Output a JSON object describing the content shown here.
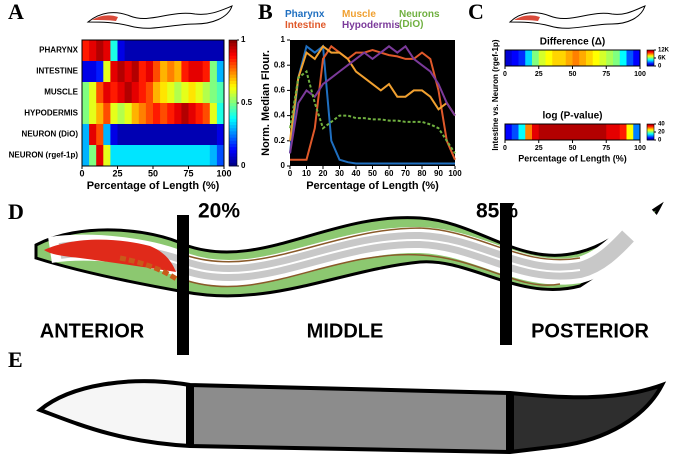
{
  "panels": [
    "A",
    "B",
    "C",
    "D",
    "E"
  ],
  "chart_data": [
    {
      "type": "heatmap",
      "rows": [
        "PHARYNX",
        "INTESTINE",
        "MUSCLE",
        "HYPODERMIS",
        "NEURON (DiO)",
        "NEURON (rgef-1p)"
      ],
      "xlabel": "Percentage of Length (%)",
      "xlim": [
        0,
        100
      ],
      "xticks": [
        0,
        25,
        50,
        75,
        100
      ],
      "zlim": [
        0,
        1
      ],
      "zticks": [
        0,
        0.5,
        1
      ],
      "values": [
        [
          0.85,
          0.9,
          0.95,
          0.9,
          0.4,
          0.1,
          0.05,
          0.05,
          0.05,
          0.05,
          0.05,
          0.05,
          0.05,
          0.05,
          0.05,
          0.05,
          0.05,
          0.05,
          0.05,
          0.05
        ],
        [
          0.1,
          0.1,
          0.15,
          0.6,
          0.9,
          0.95,
          0.9,
          0.95,
          0.85,
          0.9,
          0.8,
          0.7,
          0.75,
          0.7,
          0.85,
          0.9,
          0.9,
          0.85,
          0.5,
          0.3
        ],
        [
          0.5,
          0.6,
          0.8,
          0.9,
          0.85,
          0.9,
          0.95,
          0.9,
          0.85,
          0.8,
          0.7,
          0.65,
          0.6,
          0.55,
          0.6,
          0.65,
          0.6,
          0.55,
          0.5,
          0.45
        ],
        [
          0.5,
          0.6,
          0.7,
          0.8,
          0.6,
          0.55,
          0.6,
          0.7,
          0.75,
          0.8,
          0.85,
          0.8,
          0.85,
          0.9,
          0.95,
          0.9,
          0.85,
          0.8,
          0.6,
          0.4
        ],
        [
          0.3,
          0.9,
          0.8,
          0.3,
          0.1,
          0.05,
          0.05,
          0.05,
          0.05,
          0.05,
          0.05,
          0.05,
          0.05,
          0.05,
          0.05,
          0.05,
          0.05,
          0.05,
          0.05,
          0.1
        ],
        [
          0.3,
          0.5,
          0.9,
          0.6,
          0.35,
          0.35,
          0.35,
          0.35,
          0.35,
          0.35,
          0.35,
          0.35,
          0.35,
          0.35,
          0.35,
          0.35,
          0.35,
          0.35,
          0.3,
          0.2
        ]
      ]
    },
    {
      "type": "line",
      "ylabel": "Norm. Median Flour.",
      "xlabel": "Percentage of Length (%)",
      "xlim": [
        0,
        100
      ],
      "xticks": [
        0,
        10,
        20,
        30,
        40,
        50,
        60,
        70,
        80,
        90,
        100
      ],
      "ylim": [
        0,
        1
      ],
      "yticks": [
        0,
        0.2,
        0.4,
        0.6,
        0.8,
        1
      ],
      "x": [
        0,
        5,
        10,
        15,
        20,
        25,
        30,
        35,
        40,
        45,
        50,
        55,
        60,
        65,
        70,
        75,
        80,
        85,
        90,
        95,
        100
      ],
      "series": [
        {
          "name": "Pharynx",
          "color": "#1f6fc0",
          "values": [
            0.1,
            0.7,
            0.95,
            0.9,
            0.95,
            0.2,
            0.05,
            0.03,
            0.02,
            0.02,
            0.02,
            0.02,
            0.02,
            0.02,
            0.02,
            0.02,
            0.02,
            0.02,
            0.02,
            0.02,
            0.02
          ]
        },
        {
          "name": "Intestine",
          "color": "#e0592a",
          "values": [
            0.05,
            0.05,
            0.05,
            0.3,
            0.85,
            0.95,
            0.9,
            0.85,
            0.9,
            0.9,
            0.92,
            0.9,
            0.88,
            0.87,
            0.85,
            0.85,
            0.9,
            0.85,
            0.6,
            0.2,
            0.05
          ]
        },
        {
          "name": "Muscle",
          "color": "#f0a030",
          "values": [
            0.2,
            0.7,
            0.9,
            0.85,
            0.95,
            0.9,
            0.9,
            0.85,
            0.75,
            0.7,
            0.65,
            0.6,
            0.65,
            0.55,
            0.55,
            0.6,
            0.6,
            0.55,
            0.45,
            0.5,
            0.4
          ]
        },
        {
          "name": "Hypodermis",
          "color": "#7b3a9a",
          "values": [
            0.1,
            0.5,
            0.6,
            0.55,
            0.65,
            0.7,
            0.75,
            0.8,
            0.85,
            0.9,
            0.85,
            0.9,
            0.95,
            0.9,
            0.95,
            0.85,
            0.8,
            0.75,
            0.65,
            0.5,
            0.4
          ]
        },
        {
          "name": "Neurons (DiO)",
          "color": "#70b040",
          "linestyle": "dashed",
          "values": [
            0.3,
            0.7,
            0.75,
            0.5,
            0.3,
            0.35,
            0.4,
            0.4,
            0.38,
            0.38,
            0.37,
            0.37,
            0.36,
            0.36,
            0.35,
            0.35,
            0.35,
            0.33,
            0.3,
            0.2,
            0.1
          ]
        }
      ]
    },
    {
      "type": "heatmap",
      "title": "Difference (Δ)",
      "ylabel": "Intestine vs. Neuron (rgef-1p)",
      "xlim": [
        0,
        100
      ],
      "xticks": [
        0,
        25,
        50,
        75,
        100
      ],
      "zlim": [
        0,
        12000
      ],
      "zticks": [
        0,
        {
          "value": 6000,
          "label": "6K"
        },
        {
          "value": 12000,
          "label": "12K"
        }
      ],
      "values": [
        [
          1000,
          1500,
          2000,
          4000,
          6000,
          7000,
          7500,
          8000,
          8000,
          8500,
          9000,
          8500,
          8000,
          7500,
          7000,
          6500,
          6000,
          4500,
          2500,
          1500
        ]
      ]
    },
    {
      "type": "heatmap",
      "title": "log (P-value)",
      "xlabel": "Percentage of Length (%)",
      "xlim": [
        0,
        100
      ],
      "xticks": [
        0,
        25,
        50,
        75,
        100
      ],
      "zlim": [
        0,
        40
      ],
      "zticks": [
        0,
        20,
        40
      ],
      "values": [
        [
          5,
          8,
          15,
          30,
          36,
          38,
          38,
          38,
          38,
          38,
          38,
          38,
          38,
          38,
          38,
          36,
          36,
          34,
          25,
          10
        ]
      ]
    }
  ],
  "diagram": {
    "cuts": [
      "20%",
      "85%"
    ],
    "regions": [
      "ANTERIOR",
      "MIDDLE",
      "POSTERIOR"
    ]
  }
}
